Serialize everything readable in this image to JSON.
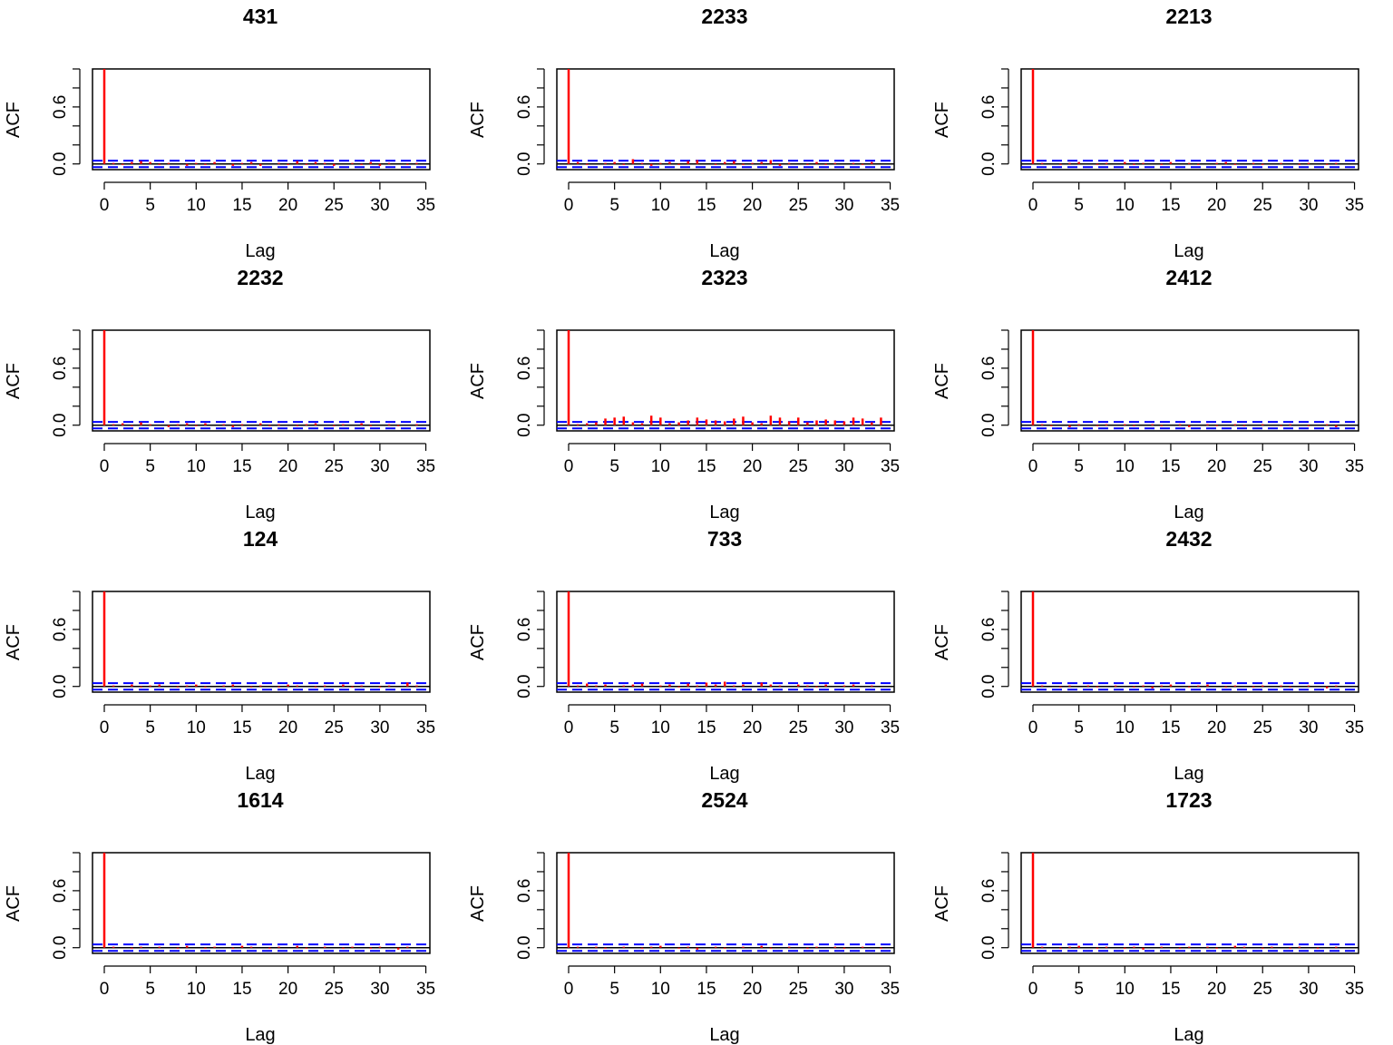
{
  "chart_data": [
    {
      "type": "bar",
      "title": "431",
      "xlabel": "Lag",
      "ylabel": "ACF",
      "xlim": [
        0,
        35
      ],
      "ylim": [
        -0.06,
        1.0
      ],
      "xticks": [
        0,
        5,
        10,
        15,
        20,
        25,
        30,
        35
      ],
      "yticks": [
        0.0,
        0.6
      ],
      "conf_band": 0.034,
      "lags": [
        0,
        1,
        2,
        3,
        4,
        5,
        6,
        7,
        8,
        9,
        10,
        11,
        12,
        13,
        14,
        15,
        16,
        17,
        18,
        19,
        20,
        21,
        22,
        23,
        24,
        25,
        26,
        27,
        28,
        29,
        30,
        31,
        32,
        33,
        34
      ],
      "values": [
        1.0,
        0.01,
        -0.01,
        0.02,
        0.03,
        0.02,
        -0.01,
        0.01,
        0.0,
        -0.02,
        0.01,
        -0.01,
        0.02,
        0.0,
        -0.02,
        0.01,
        0.02,
        -0.02,
        0.0,
        0.01,
        -0.01,
        0.03,
        -0.01,
        0.02,
        0.01,
        -0.02,
        0.0,
        0.01,
        -0.01,
        0.02,
        -0.02,
        0.01,
        0.0,
        -0.01,
        0.01
      ]
    },
    {
      "type": "bar",
      "title": "2233",
      "xlabel": "Lag",
      "ylabel": "ACF",
      "xlim": [
        0,
        35
      ],
      "ylim": [
        -0.06,
        1.0
      ],
      "xticks": [
        0,
        5,
        10,
        15,
        20,
        25,
        30,
        35
      ],
      "yticks": [
        0.0,
        0.6
      ],
      "conf_band": 0.034,
      "lags": [
        0,
        1,
        2,
        3,
        4,
        5,
        6,
        7,
        8,
        9,
        10,
        11,
        12,
        13,
        14,
        15,
        16,
        17,
        18,
        19,
        20,
        21,
        22,
        23,
        24,
        25,
        26,
        27,
        28,
        29,
        30,
        31,
        32,
        33,
        34
      ],
      "values": [
        1.0,
        0.02,
        -0.01,
        0.0,
        0.01,
        0.02,
        -0.01,
        0.05,
        0.01,
        -0.02,
        0.01,
        0.02,
        -0.01,
        0.03,
        0.04,
        0.0,
        -0.01,
        0.02,
        0.03,
        -0.01,
        0.01,
        0.02,
        0.04,
        -0.02,
        0.01,
        0.0,
        -0.01,
        0.02,
        -0.01,
        0.01,
        0.0,
        0.01,
        -0.01,
        0.02,
        0.0
      ]
    },
    {
      "type": "bar",
      "title": "2213",
      "xlabel": "Lag",
      "ylabel": "ACF",
      "xlim": [
        0,
        35
      ],
      "ylim": [
        -0.06,
        1.0
      ],
      "xticks": [
        0,
        5,
        10,
        15,
        20,
        25,
        30,
        35
      ],
      "yticks": [
        0.0,
        0.6
      ],
      "conf_band": 0.034,
      "lags": [
        0,
        1,
        2,
        3,
        4,
        5,
        6,
        7,
        8,
        9,
        10,
        11,
        12,
        13,
        14,
        15,
        16,
        17,
        18,
        19,
        20,
        21,
        22,
        23,
        24,
        25,
        26,
        27,
        28,
        29,
        30,
        31,
        32,
        33,
        34
      ],
      "values": [
        1.0,
        0.01,
        0.0,
        -0.01,
        0.01,
        0.02,
        0.0,
        -0.01,
        0.01,
        0.0,
        0.02,
        -0.01,
        0.01,
        0.0,
        -0.01,
        0.02,
        0.0,
        0.01,
        -0.01,
        0.0,
        0.01,
        0.02,
        -0.01,
        0.0,
        0.01,
        -0.01,
        0.0,
        0.01,
        0.0,
        -0.01,
        0.01,
        0.0,
        -0.01,
        0.01,
        0.0
      ]
    },
    {
      "type": "bar",
      "title": "2232",
      "xlabel": "Lag",
      "ylabel": "ACF",
      "xlim": [
        0,
        35
      ],
      "ylim": [
        -0.06,
        1.0
      ],
      "xticks": [
        0,
        5,
        10,
        15,
        20,
        25,
        30,
        35
      ],
      "yticks": [
        0.0,
        0.6
      ],
      "conf_band": 0.034,
      "lags": [
        0,
        1,
        2,
        3,
        4,
        5,
        6,
        7,
        8,
        9,
        10,
        11,
        12,
        13,
        14,
        15,
        16,
        17,
        18,
        19,
        20,
        21,
        22,
        23,
        24,
        25,
        26,
        27,
        28,
        29,
        30,
        31,
        32,
        33,
        34
      ],
      "values": [
        1.0,
        0.01,
        0.02,
        -0.01,
        0.03,
        0.01,
        0.0,
        -0.02,
        0.01,
        0.02,
        -0.01,
        0.02,
        0.0,
        0.01,
        -0.02,
        0.01,
        0.0,
        0.02,
        -0.01,
        0.01,
        0.0,
        -0.01,
        0.01,
        0.02,
        0.0,
        -0.01,
        0.01,
        0.0,
        0.02,
        -0.01,
        0.0,
        0.01,
        -0.01,
        0.0,
        0.01
      ]
    },
    {
      "type": "bar",
      "title": "2323",
      "xlabel": "Lag",
      "ylabel": "ACF",
      "xlim": [
        0,
        35
      ],
      "ylim": [
        -0.06,
        1.0
      ],
      "xticks": [
        0,
        5,
        10,
        15,
        20,
        25,
        30,
        35
      ],
      "yticks": [
        0.0,
        0.6
      ],
      "conf_band": 0.034,
      "lags": [
        0,
        1,
        2,
        3,
        4,
        5,
        6,
        7,
        8,
        9,
        10,
        11,
        12,
        13,
        14,
        15,
        16,
        17,
        18,
        19,
        20,
        21,
        22,
        23,
        24,
        25,
        26,
        27,
        28,
        29,
        30,
        31,
        32,
        33,
        34
      ],
      "values": [
        1.0,
        0.01,
        0.02,
        0.03,
        0.07,
        0.08,
        0.09,
        0.03,
        0.02,
        0.1,
        0.08,
        0.02,
        0.03,
        0.05,
        0.08,
        0.06,
        0.05,
        0.04,
        0.07,
        0.09,
        0.03,
        0.02,
        0.1,
        0.08,
        0.04,
        0.08,
        0.03,
        0.05,
        0.06,
        0.05,
        0.04,
        0.08,
        0.07,
        0.03,
        0.08
      ]
    },
    {
      "type": "bar",
      "title": "2412",
      "xlabel": "Lag",
      "ylabel": "ACF",
      "xlim": [
        0,
        35
      ],
      "ylim": [
        -0.06,
        1.0
      ],
      "xticks": [
        0,
        5,
        10,
        15,
        20,
        25,
        30,
        35
      ],
      "yticks": [
        0.0,
        0.6
      ],
      "conf_band": 0.034,
      "lags": [
        0,
        1,
        2,
        3,
        4,
        5,
        6,
        7,
        8,
        9,
        10,
        11,
        12,
        13,
        14,
        15,
        16,
        17,
        18,
        19,
        20,
        21,
        22,
        23,
        24,
        25,
        26,
        27,
        28,
        29,
        30,
        31,
        32,
        33,
        34
      ],
      "values": [
        1.0,
        0.01,
        -0.01,
        0.0,
        -0.02,
        0.01,
        0.0,
        -0.01,
        0.01,
        0.0,
        0.01,
        -0.01,
        0.0,
        0.01,
        -0.01,
        0.0,
        0.01,
        -0.02,
        0.0,
        0.01,
        -0.01,
        0.0,
        0.01,
        -0.01,
        0.0,
        0.01,
        0.0,
        -0.01,
        0.01,
        0.0,
        -0.01,
        0.0,
        0.01,
        -0.02,
        0.0
      ]
    },
    {
      "type": "bar",
      "title": "124",
      "xlabel": "Lag",
      "ylabel": "ACF",
      "xlim": [
        0,
        35
      ],
      "ylim": [
        -0.06,
        1.0
      ],
      "xticks": [
        0,
        5,
        10,
        15,
        20,
        25,
        30,
        35
      ],
      "yticks": [
        0.0,
        0.6
      ],
      "conf_band": 0.034,
      "lags": [
        0,
        1,
        2,
        3,
        4,
        5,
        6,
        7,
        8,
        9,
        10,
        11,
        12,
        13,
        14,
        15,
        16,
        17,
        18,
        19,
        20,
        21,
        22,
        23,
        24,
        25,
        26,
        27,
        28,
        29,
        30,
        31,
        32,
        33,
        34
      ],
      "values": [
        1.0,
        0.01,
        0.0,
        0.02,
        -0.01,
        0.01,
        0.02,
        0.0,
        -0.01,
        0.01,
        0.02,
        -0.01,
        0.0,
        0.01,
        0.02,
        0.0,
        -0.01,
        0.01,
        0.0,
        -0.01,
        0.02,
        0.01,
        0.0,
        -0.01,
        0.01,
        0.0,
        0.02,
        -0.01,
        0.01,
        0.0,
        -0.01,
        0.01,
        0.0,
        0.04,
        0.01
      ]
    },
    {
      "type": "bar",
      "title": "733",
      "xlabel": "Lag",
      "ylabel": "ACF",
      "xlim": [
        0,
        35
      ],
      "ylim": [
        -0.06,
        1.0
      ],
      "xticks": [
        0,
        5,
        10,
        15,
        20,
        25,
        30,
        35
      ],
      "yticks": [
        0.0,
        0.6
      ],
      "conf_band": 0.034,
      "lags": [
        0,
        1,
        2,
        3,
        4,
        5,
        6,
        7,
        8,
        9,
        10,
        11,
        12,
        13,
        14,
        15,
        16,
        17,
        18,
        19,
        20,
        21,
        22,
        23,
        24,
        25,
        26,
        27,
        28,
        29,
        30,
        31,
        32,
        33,
        34
      ],
      "values": [
        1.0,
        0.01,
        0.03,
        0.01,
        0.02,
        0.0,
        0.01,
        0.02,
        0.03,
        0.0,
        0.01,
        0.02,
        -0.01,
        0.03,
        0.01,
        0.04,
        0.02,
        0.05,
        0.01,
        0.02,
        0.0,
        0.04,
        0.02,
        0.01,
        0.0,
        0.02,
        0.01,
        -0.01,
        0.02,
        0.0,
        0.01,
        0.02,
        0.0,
        0.01,
        0.0
      ]
    },
    {
      "type": "bar",
      "title": "2432",
      "xlabel": "Lag",
      "ylabel": "ACF",
      "xlim": [
        0,
        35
      ],
      "ylim": [
        -0.06,
        1.0
      ],
      "xticks": [
        0,
        5,
        10,
        15,
        20,
        25,
        30,
        35
      ],
      "yticks": [
        0.0,
        0.6
      ],
      "conf_band": 0.034,
      "lags": [
        0,
        1,
        2,
        3,
        4,
        5,
        6,
        7,
        8,
        9,
        10,
        11,
        12,
        13,
        14,
        15,
        16,
        17,
        18,
        19,
        20,
        21,
        22,
        23,
        24,
        25,
        26,
        27,
        28,
        29,
        30,
        31,
        32,
        33,
        34
      ],
      "values": [
        1.0,
        0.01,
        0.0,
        -0.01,
        0.01,
        0.0,
        0.01,
        -0.01,
        0.0,
        0.01,
        0.0,
        -0.01,
        0.01,
        -0.02,
        0.01,
        0.02,
        0.0,
        -0.01,
        0.01,
        0.02,
        0.0,
        -0.01,
        0.01,
        0.0,
        -0.01,
        0.01,
        0.0,
        0.01,
        -0.01,
        0.0,
        0.01,
        0.0,
        -0.02,
        0.01,
        0.0
      ]
    },
    {
      "type": "bar",
      "title": "1614",
      "xlabel": "Lag",
      "ylabel": "ACF",
      "xlim": [
        0,
        35
      ],
      "ylim": [
        -0.06,
        1.0
      ],
      "xticks": [
        0,
        5,
        10,
        15,
        20,
        25,
        30,
        35
      ],
      "yticks": [
        0.0,
        0.6
      ],
      "conf_band": 0.034,
      "lags": [
        0,
        1,
        2,
        3,
        4,
        5,
        6,
        7,
        8,
        9,
        10,
        11,
        12,
        13,
        14,
        15,
        16,
        17,
        18,
        19,
        20,
        21,
        22,
        23,
        24,
        25,
        26,
        27,
        28,
        29,
        30,
        31,
        32,
        33,
        34
      ],
      "values": [
        1.0,
        0.01,
        0.0,
        -0.01,
        0.01,
        0.0,
        0.01,
        0.0,
        -0.01,
        0.02,
        0.0,
        -0.01,
        0.01,
        0.0,
        -0.01,
        0.02,
        0.01,
        0.0,
        -0.01,
        0.01,
        0.0,
        0.02,
        -0.01,
        0.0,
        0.01,
        0.0,
        -0.01,
        0.01,
        0.0,
        -0.01,
        0.01,
        0.0,
        -0.02,
        0.01,
        0.0
      ]
    },
    {
      "type": "bar",
      "title": "2524",
      "xlabel": "Lag",
      "ylabel": "ACF",
      "xlim": [
        0,
        35
      ],
      "ylim": [
        -0.06,
        1.0
      ],
      "xticks": [
        0,
        5,
        10,
        15,
        20,
        25,
        30,
        35
      ],
      "yticks": [
        0.0,
        0.6
      ],
      "conf_band": 0.034,
      "lags": [
        0,
        1,
        2,
        3,
        4,
        5,
        6,
        7,
        8,
        9,
        10,
        11,
        12,
        13,
        14,
        15,
        16,
        17,
        18,
        19,
        20,
        21,
        22,
        23,
        24,
        25,
        26,
        27,
        28,
        29,
        30,
        31,
        32,
        33,
        34
      ],
      "values": [
        1.0,
        0.01,
        0.0,
        0.01,
        -0.01,
        0.0,
        0.01,
        0.0,
        -0.01,
        0.01,
        0.02,
        0.0,
        -0.01,
        0.01,
        -0.02,
        0.0,
        0.01,
        -0.01,
        0.0,
        0.01,
        0.0,
        0.02,
        -0.01,
        0.0,
        0.01,
        0.0,
        -0.01,
        0.01,
        0.0,
        0.01,
        -0.01,
        0.0,
        0.01,
        0.0,
        -0.01
      ]
    },
    {
      "type": "bar",
      "title": "1723",
      "xlabel": "Lag",
      "ylabel": "ACF",
      "xlim": [
        0,
        35
      ],
      "ylim": [
        -0.06,
        1.0
      ],
      "xticks": [
        0,
        5,
        10,
        15,
        20,
        25,
        30,
        35
      ],
      "yticks": [
        0.0,
        0.6
      ],
      "conf_band": 0.034,
      "lags": [
        0,
        1,
        2,
        3,
        4,
        5,
        6,
        7,
        8,
        9,
        10,
        11,
        12,
        13,
        14,
        15,
        16,
        17,
        18,
        19,
        20,
        21,
        22,
        23,
        24,
        25,
        26,
        27,
        28,
        29,
        30,
        31,
        32,
        33,
        34
      ],
      "values": [
        1.0,
        0.01,
        0.0,
        -0.01,
        0.01,
        0.02,
        0.0,
        -0.01,
        0.01,
        0.0,
        -0.01,
        0.01,
        -0.02,
        0.0,
        0.01,
        0.0,
        -0.01,
        0.01,
        0.0,
        0.01,
        -0.01,
        0.0,
        0.02,
        0.01,
        0.0,
        -0.01,
        0.01,
        0.0,
        -0.01,
        0.01,
        0.0,
        -0.01,
        0.0,
        0.01,
        0.0
      ]
    }
  ],
  "colors": {
    "bars": "#ff0000",
    "conf": "#0000ff",
    "axis": "#000000"
  }
}
